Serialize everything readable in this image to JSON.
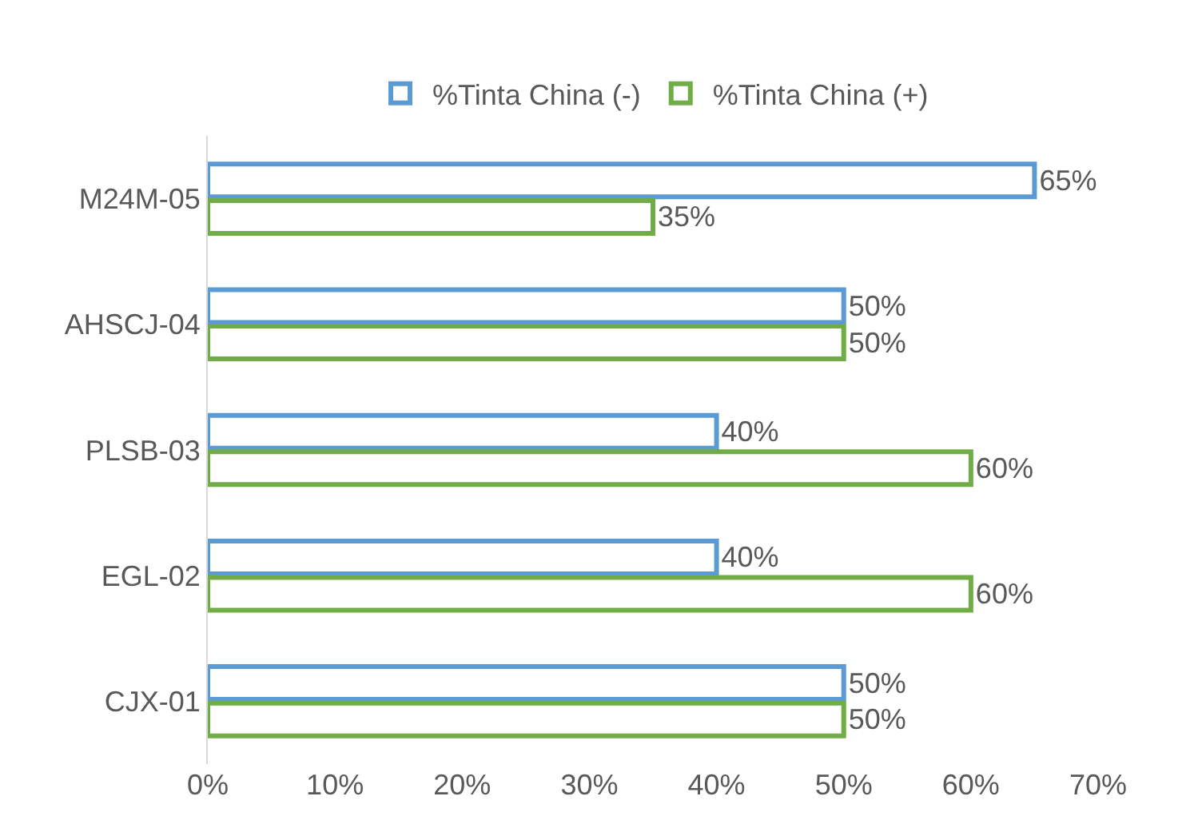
{
  "chart_data": {
    "type": "bar",
    "orientation": "horizontal",
    "categories": [
      "M24M-05",
      "AHSCJ-04",
      "PLSB-03",
      "EGL-02",
      "CJX-01"
    ],
    "series": [
      {
        "name": "%Tinta China (-)",
        "color": "#5b9bd5",
        "values": [
          65,
          50,
          40,
          40,
          50
        ],
        "value_labels": [
          "65%",
          "50%",
          "40%",
          "40%",
          "50%"
        ]
      },
      {
        "name": "%Tinta China (+)",
        "color": "#70ad47",
        "values": [
          35,
          50,
          60,
          60,
          50
        ],
        "value_labels": [
          "35%",
          "50%",
          "60%",
          "60%",
          "50%"
        ]
      }
    ],
    "xlim": [
      0,
      70
    ],
    "xticks": [
      {
        "value": 0,
        "label": "0%"
      },
      {
        "value": 10,
        "label": "10%"
      },
      {
        "value": 20,
        "label": "20%"
      },
      {
        "value": 30,
        "label": "30%"
      },
      {
        "value": 40,
        "label": "40%"
      },
      {
        "value": 50,
        "label": "50%"
      },
      {
        "value": 60,
        "label": "60%"
      },
      {
        "value": 70,
        "label": "70%"
      }
    ],
    "grid": false,
    "legend": "top"
  }
}
